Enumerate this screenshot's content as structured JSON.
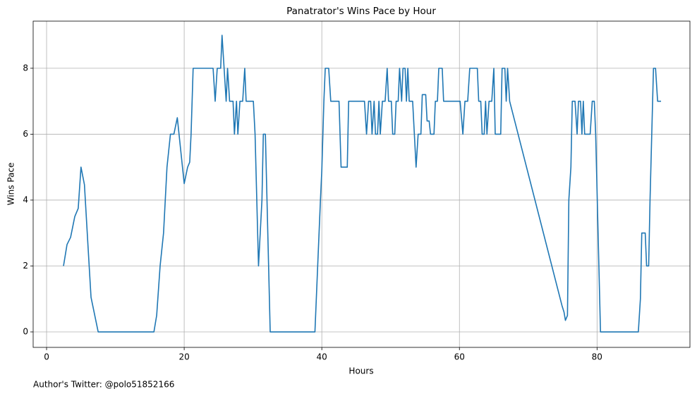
{
  "chart_data": {
    "type": "line",
    "title": "Panatrator's Wins Pace by Hour",
    "xlabel": "Hours",
    "ylabel": "Wins Pace",
    "annotation": "Author's Twitter: @polo51852166",
    "xlim": [
      -1.95,
      93.5
    ],
    "ylim": [
      -0.47,
      9.43
    ],
    "xticks": [
      0,
      20,
      40,
      60,
      80
    ],
    "yticks": [
      0,
      2,
      4,
      6,
      8
    ],
    "grid": true,
    "series": [
      {
        "name": "Wins Pace",
        "color": "#1f77b4",
        "x": [
          2.46,
          2.97,
          3.49,
          4.1,
          4.6,
          5.0,
          5.5,
          6.05,
          6.46,
          7.5,
          15.6,
          16,
          16.5,
          17,
          17.5,
          18,
          18.5,
          19,
          20,
          20.5,
          20.8,
          21,
          21.3,
          24.2,
          24.5,
          24.8,
          25.3,
          25.5,
          25.8,
          26.1,
          26.3,
          26.6,
          27.1,
          27.3,
          27.6,
          27.8,
          28.1,
          28.5,
          28.8,
          29.0,
          30.05,
          30.3,
          30.8,
          31.3,
          31.5,
          31.8,
          32.5,
          39,
          39.8,
          40,
          40.3,
          40.5,
          41,
          41.3,
          42.5,
          42.8,
          43.7,
          43.9,
          46.2,
          46.5,
          46.8,
          47.1,
          47.3,
          47.6,
          47.8,
          48.1,
          48.3,
          48.5,
          48.8,
          49.2,
          49.5,
          49.7,
          50.1,
          50.3,
          50.6,
          50.8,
          51.1,
          51.3,
          51.6,
          51.8,
          52.1,
          52.3,
          52.5,
          52.7,
          53.2,
          53.7,
          54.0,
          54.4,
          54.6,
          55.1,
          55.3,
          55.6,
          55.8,
          56.3,
          56.5,
          56.8,
          57.0,
          57.5,
          57.7,
          60.1,
          60.5,
          60.8,
          61.2,
          61.5,
          62.6,
          62.8,
          63.1,
          63.3,
          63.6,
          63.8,
          64.0,
          64.3,
          64.7,
          65.0,
          65.2,
          66.0,
          66.2,
          66.6,
          66.8,
          67.0,
          67.3,
          74.9,
          75.2,
          75.4,
          75.7,
          75.9,
          76.2,
          76.4,
          76.8,
          77.1,
          77.3,
          77.6,
          77.8,
          78.0,
          78.2,
          79.0,
          79.3,
          79.6,
          79.8,
          80.5,
          86,
          86.3,
          86.5,
          87,
          87.2,
          87.5,
          87.7,
          88.2,
          88.5,
          88.8,
          89.3
        ],
        "values": [
          2,
          2.65,
          2.87,
          3.5,
          3.75,
          5.0,
          4.47,
          2.5,
          1.05,
          0,
          0,
          0.5,
          2,
          3,
          5,
          6,
          6,
          6.5,
          4.5,
          5,
          5.15,
          6,
          8,
          8,
          7,
          8,
          8,
          9,
          8,
          7,
          8,
          7,
          7,
          6,
          7,
          6,
          7,
          7,
          8,
          7,
          7,
          6,
          2,
          4,
          6,
          6,
          0,
          0,
          4,
          4.9,
          7,
          8,
          8,
          7,
          7,
          5,
          5,
          7,
          7,
          6,
          7,
          7,
          6,
          7,
          6,
          6,
          7,
          6,
          7,
          7,
          8,
          7,
          7,
          6,
          6,
          7,
          7,
          8,
          7,
          8,
          8,
          7,
          8,
          7,
          7,
          5,
          6,
          6,
          7.2,
          7.2,
          6.4,
          6.4,
          6,
          6,
          7,
          7,
          8,
          8,
          7,
          7,
          6,
          7,
          7,
          8,
          8,
          7,
          7,
          6,
          6,
          7,
          6,
          7,
          7,
          8,
          6,
          6,
          8,
          8,
          7,
          8,
          7,
          0.8,
          0.6,
          0.35,
          0.5,
          4,
          5,
          7,
          7,
          6,
          7,
          7,
          6,
          7,
          6,
          6,
          7,
          7,
          6,
          0,
          0,
          1,
          3,
          3,
          2,
          2,
          4,
          8,
          8,
          7,
          7
        ]
      }
    ]
  }
}
